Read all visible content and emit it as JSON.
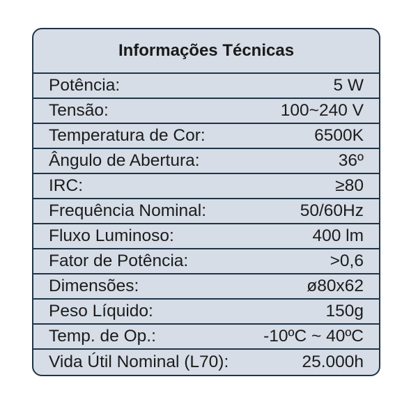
{
  "title": "Informações Técnicas",
  "rows": [
    {
      "label": "Potência:",
      "value": "5 W"
    },
    {
      "label": "Tensão:",
      "value": "100~240 V"
    },
    {
      "label": "Temperatura de Cor:",
      "value": "6500K"
    },
    {
      "label": "Ângulo de Abertura:",
      "value": "36º"
    },
    {
      "label": "IRC:",
      "value": "≥80"
    },
    {
      "label": "Frequência Nominal:",
      "value": "50/60Hz"
    },
    {
      "label": "Fluxo Luminoso:",
      "value": "400 lm"
    },
    {
      "label": "Fator de Potência:",
      "value": ">0,6"
    },
    {
      "label": "Dimensões:",
      "value": "ø80x62"
    },
    {
      "label": "Peso Líquido:",
      "value": "150g"
    },
    {
      "label": "Temp. de Op.:",
      "value": "-10ºC ~ 40ºC"
    },
    {
      "label": "Vida Útil Nominal (L70):",
      "value": "25.000h"
    }
  ],
  "colors": {
    "background": "#d6dde7",
    "border": "#1f3447"
  }
}
